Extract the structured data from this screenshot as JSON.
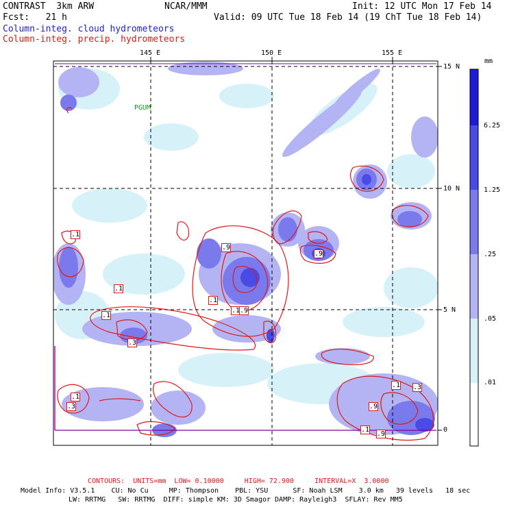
{
  "header": {
    "line1_left": "CONTRAST  3km ARW",
    "line1_center": "NCAR/MMM",
    "line1_right": "Init: 12 UTC Mon 17 Feb 14",
    "line2_left": "Fcst:   21 h",
    "line2_right": "Valid: 09 UTC Tue 18 Feb 14 (19 ChT Tue 18 Feb 14)",
    "field1": "Column-integ. cloud hydrometeors",
    "field2": "Column-integ. precip. hydrometeors"
  },
  "map": {
    "lon_labels": [
      "145 E",
      "150 E",
      "155 E"
    ],
    "lat_labels": [
      "15 N",
      "10 N",
      "5 N",
      "0"
    ],
    "station_label": "PGUM",
    "contour_labels": [
      ".1",
      ".9",
      ".1",
      ".1",
      ".1",
      ".1",
      ".9",
      ".3",
      ".3",
      ".9",
      ".1",
      ".3",
      ".1",
      ".9",
      ".1",
      ".9"
    ]
  },
  "colorbar": {
    "unit": "mm",
    "labels": [
      "6.25",
      "1.25",
      ".25",
      ".05",
      ".01"
    ],
    "colors": [
      "#1c1cd6",
      "#4a4ae6",
      "#7a7aec",
      "#b4b4f4",
      "#d6f2f8",
      "#ffffff"
    ]
  },
  "footer": {
    "contours": "CONTOURS:  UNITS=mm  LOW= 0.10000     HIGH= 72.900     INTERVAL=X  3.0000",
    "model_line1": "Model Info: V3.5.1    CU: No Cu     MP: Thompson    PBL: YSU      SF: Noah LSM    3.0 km   39 levels   18 sec",
    "model_line2": "LW: RRTMG   SW: RRTMG  DIFF: simple KM: 3D Smagor DAMP: Rayleigh3  SFLAY: Rev MM5"
  },
  "colors": {
    "header_blue": "#2020c8",
    "header_red": "#e01818",
    "station_green": "#10a010",
    "frame_magenta": "#d000d0"
  }
}
